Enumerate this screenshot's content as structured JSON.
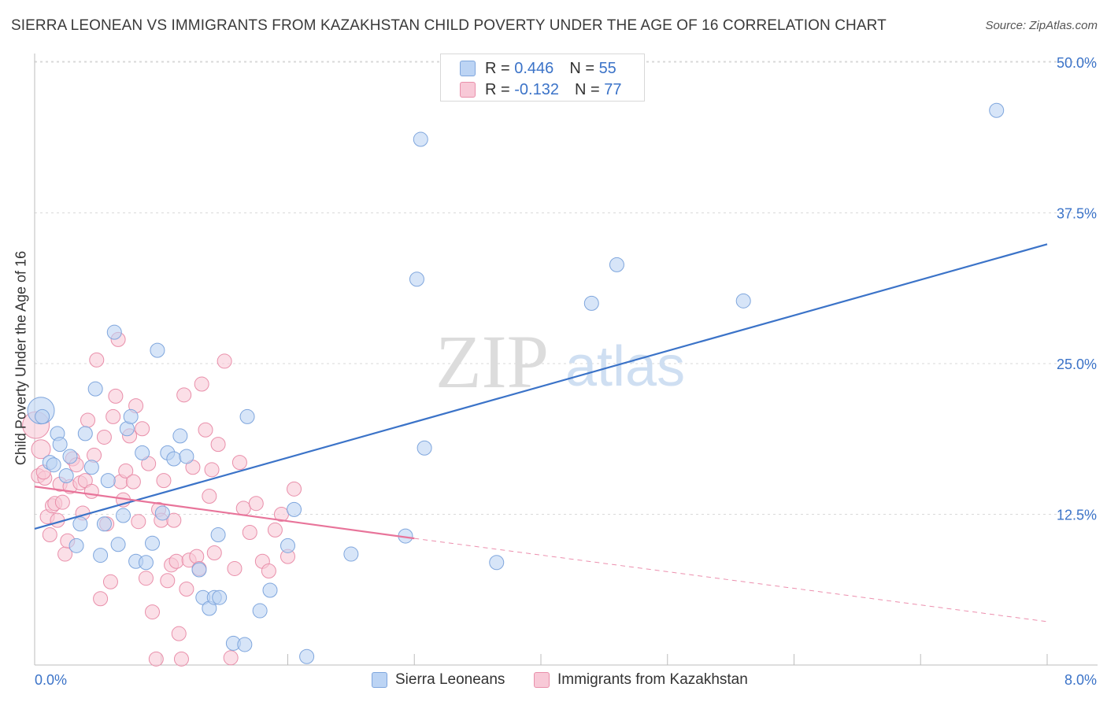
{
  "header": {
    "title": "SIERRA LEONEAN VS IMMIGRANTS FROM KAZAKHSTAN CHILD POVERTY UNDER THE AGE OF 16 CORRELATION CHART",
    "source": "Source: ZipAtlas.com"
  },
  "legend_top": {
    "r_label": "R =",
    "n_label": "N =",
    "series1_r": "0.446",
    "series1_n": "55",
    "series2_r": "-0.132",
    "series2_n": "77"
  },
  "legend_bottom": {
    "series1": "Sierra Leoneans",
    "series2": "Immigrants from Kazakhstan"
  },
  "watermark": {
    "zip": "ZIP",
    "atlas": "atlas"
  },
  "colors": {
    "blue_fill": "#bcd4f4",
    "blue_stroke": "#7fa6dd",
    "blue_line": "#3b73c8",
    "pink_fill": "#f8c9d7",
    "pink_stroke": "#e98faa",
    "pink_line": "#e8749a",
    "tick_label": "#3b73c8"
  },
  "chart_data": {
    "type": "scatter",
    "title": "SIERRA LEONEAN VS IMMIGRANTS FROM KAZAKHSTAN CHILD POVERTY UNDER THE AGE OF 16 CORRELATION CHART",
    "xlabel": "",
    "ylabel": "Child Poverty Under the Age of 16",
    "xlim": [
      0,
      8
    ],
    "ylim": [
      0,
      50
    ],
    "x_tick_labels": [
      "0.0%",
      "8.0%"
    ],
    "y_ticks": [
      12.5,
      25.0,
      37.5,
      50.0
    ],
    "y_tick_labels": [
      "12.5%",
      "25.0%",
      "37.5%",
      "50.0%"
    ],
    "grid": true,
    "series": [
      {
        "name": "Sierra Leoneans",
        "r": 0.446,
        "n": 55,
        "trend": {
          "x": [
            0.0,
            8.0
          ],
          "y": [
            11.3,
            34.9
          ]
        },
        "points": [
          [
            0.05,
            21.1
          ],
          [
            0.06,
            20.6
          ],
          [
            0.12,
            16.8
          ],
          [
            0.15,
            16.6
          ],
          [
            0.18,
            19.2
          ],
          [
            0.2,
            18.3
          ],
          [
            0.25,
            15.7
          ],
          [
            0.28,
            17.3
          ],
          [
            0.33,
            9.9
          ],
          [
            0.36,
            11.7
          ],
          [
            0.4,
            19.2
          ],
          [
            0.45,
            16.4
          ],
          [
            0.48,
            22.9
          ],
          [
            0.52,
            9.1
          ],
          [
            0.55,
            11.7
          ],
          [
            0.58,
            15.3
          ],
          [
            0.63,
            27.6
          ],
          [
            0.66,
            10.0
          ],
          [
            0.7,
            12.4
          ],
          [
            0.73,
            19.6
          ],
          [
            0.76,
            20.6
          ],
          [
            0.8,
            8.6
          ],
          [
            0.85,
            17.6
          ],
          [
            0.88,
            8.5
          ],
          [
            0.93,
            10.1
          ],
          [
            0.97,
            26.1
          ],
          [
            1.01,
            12.6
          ],
          [
            1.05,
            17.6
          ],
          [
            1.1,
            17.1
          ],
          [
            1.15,
            19.0
          ],
          [
            1.2,
            17.3
          ],
          [
            1.3,
            7.9
          ],
          [
            1.33,
            5.6
          ],
          [
            1.38,
            4.7
          ],
          [
            1.42,
            5.6
          ],
          [
            1.46,
            5.6
          ],
          [
            1.45,
            10.8
          ],
          [
            1.57,
            1.8
          ],
          [
            1.66,
            1.7
          ],
          [
            1.68,
            20.6
          ],
          [
            1.78,
            4.5
          ],
          [
            1.86,
            6.2
          ],
          [
            2.0,
            9.9
          ],
          [
            2.05,
            12.9
          ],
          [
            2.15,
            0.7
          ],
          [
            2.5,
            9.2
          ],
          [
            2.93,
            10.7
          ],
          [
            3.02,
            32.0
          ],
          [
            3.05,
            43.6
          ],
          [
            3.08,
            18.0
          ],
          [
            3.65,
            8.5
          ],
          [
            4.4,
            30.0
          ],
          [
            4.6,
            33.2
          ],
          [
            5.6,
            30.2
          ],
          [
            7.6,
            46.0
          ]
        ]
      },
      {
        "name": "Immigrants from Kazakhstan",
        "r": -0.132,
        "n": 77,
        "trend": {
          "x": [
            0.0,
            3.0
          ],
          "y": [
            14.8,
            10.5
          ]
        },
        "trend_dashed": {
          "x": [
            3.0,
            8.0
          ],
          "y": [
            10.5,
            3.6
          ]
        },
        "points": [
          [
            0.01,
            19.9
          ],
          [
            0.03,
            15.7
          ],
          [
            0.05,
            17.9
          ],
          [
            0.08,
            15.5
          ],
          [
            0.1,
            12.3
          ],
          [
            0.12,
            10.8
          ],
          [
            0.14,
            13.2
          ],
          [
            0.16,
            13.4
          ],
          [
            0.18,
            12.0
          ],
          [
            0.2,
            15.0
          ],
          [
            0.22,
            13.5
          ],
          [
            0.24,
            9.2
          ],
          [
            0.26,
            10.3
          ],
          [
            0.28,
            14.8
          ],
          [
            0.3,
            17.1
          ],
          [
            0.33,
            16.6
          ],
          [
            0.36,
            15.1
          ],
          [
            0.38,
            12.6
          ],
          [
            0.4,
            15.3
          ],
          [
            0.42,
            20.3
          ],
          [
            0.45,
            14.4
          ],
          [
            0.47,
            17.4
          ],
          [
            0.49,
            25.3
          ],
          [
            0.52,
            5.5
          ],
          [
            0.55,
            18.9
          ],
          [
            0.57,
            11.7
          ],
          [
            0.6,
            6.9
          ],
          [
            0.62,
            20.6
          ],
          [
            0.64,
            22.3
          ],
          [
            0.66,
            27.0
          ],
          [
            0.68,
            15.2
          ],
          [
            0.7,
            13.7
          ],
          [
            0.72,
            16.1
          ],
          [
            0.75,
            19.0
          ],
          [
            0.78,
            15.2
          ],
          [
            0.8,
            21.5
          ],
          [
            0.82,
            11.9
          ],
          [
            0.85,
            19.6
          ],
          [
            0.88,
            7.2
          ],
          [
            0.9,
            16.7
          ],
          [
            0.93,
            4.4
          ],
          [
            0.96,
            0.5
          ],
          [
            0.98,
            12.9
          ],
          [
            1.0,
            12.0
          ],
          [
            1.02,
            15.3
          ],
          [
            1.05,
            7.0
          ],
          [
            1.08,
            8.3
          ],
          [
            1.1,
            12.0
          ],
          [
            1.12,
            8.6
          ],
          [
            1.14,
            2.6
          ],
          [
            1.16,
            0.5
          ],
          [
            1.18,
            22.4
          ],
          [
            1.2,
            6.3
          ],
          [
            1.22,
            8.7
          ],
          [
            1.25,
            16.4
          ],
          [
            1.28,
            9.0
          ],
          [
            1.3,
            8.0
          ],
          [
            1.32,
            23.3
          ],
          [
            1.35,
            19.5
          ],
          [
            1.38,
            14.0
          ],
          [
            1.4,
            16.2
          ],
          [
            1.42,
            9.3
          ],
          [
            1.45,
            18.3
          ],
          [
            1.5,
            25.2
          ],
          [
            1.55,
            0.6
          ],
          [
            1.58,
            8.0
          ],
          [
            1.62,
            16.8
          ],
          [
            1.65,
            13.0
          ],
          [
            1.7,
            11.0
          ],
          [
            1.75,
            13.4
          ],
          [
            1.8,
            8.6
          ],
          [
            1.85,
            7.8
          ],
          [
            1.9,
            11.2
          ],
          [
            1.95,
            12.5
          ],
          [
            2.0,
            9.0
          ],
          [
            2.05,
            14.6
          ],
          [
            0.07,
            16.0
          ]
        ]
      }
    ]
  }
}
